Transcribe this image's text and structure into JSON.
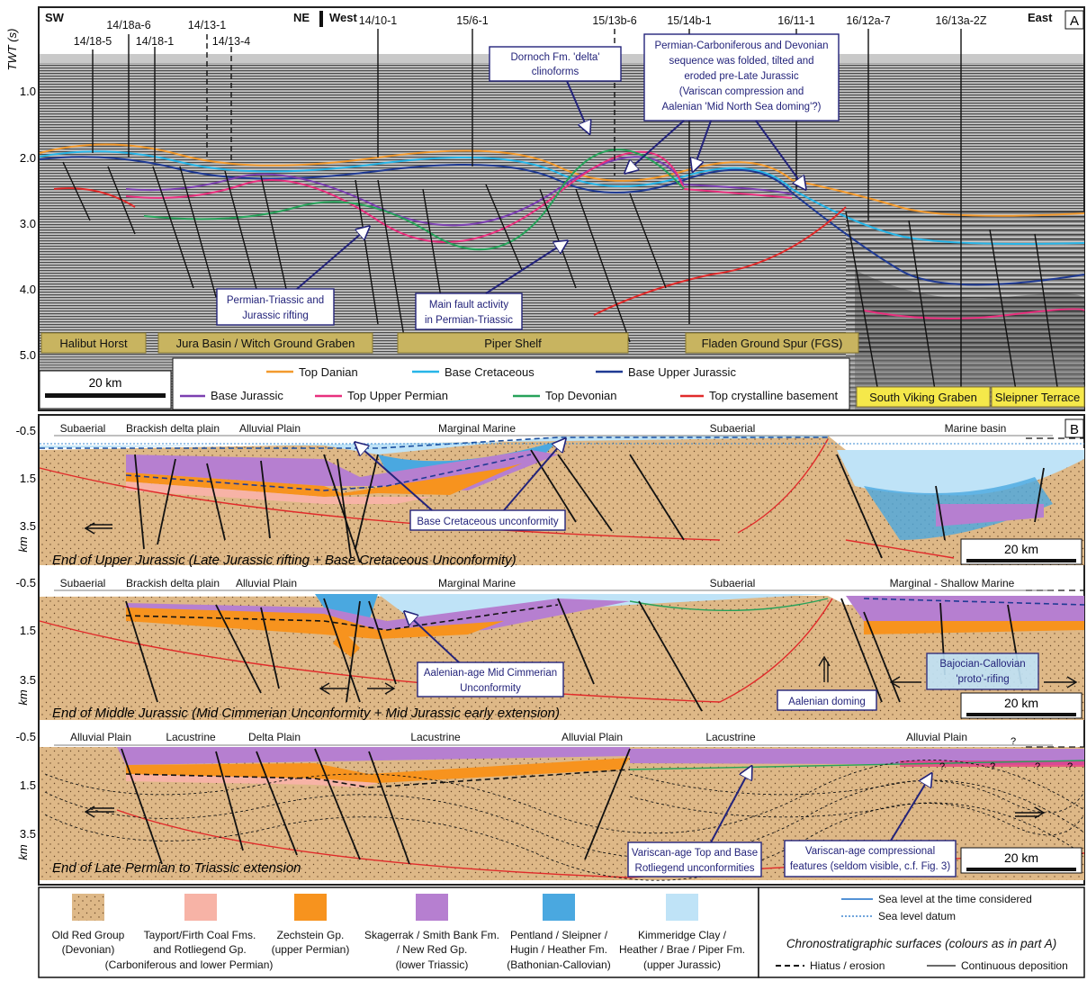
{
  "panel_a": {
    "label": "A",
    "axis_title": "TWT (s)",
    "y_ticks": [
      "1.0",
      "2.0",
      "3.0",
      "4.0",
      "5.0"
    ],
    "dir_sw": "SW",
    "dir_ne": "NE",
    "dir_west": "West",
    "dir_east": "East",
    "wells": [
      "14/18-5",
      "14/18a-6",
      "14/18-1",
      "14/13-1",
      "14/13-4",
      "14/10-1",
      "15/6-1",
      "15/13b-6",
      "15/14b-1",
      "16/11-1",
      "16/12a-7",
      "16/13a-2Z"
    ],
    "callouts": {
      "dornoch": [
        "Dornoch Fm. 'delta'",
        "clinoforms"
      ],
      "permo_carb": [
        "Permian-Carboniferous and Devonian",
        "sequence was folded, tilted and",
        "eroded pre-Late Jurassic",
        "(Variscan compression and",
        "Aalenian 'Mid North Sea doming'?)"
      ],
      "pt_rifting": [
        "Permian-Triassic and",
        "Jurassic rifting"
      ],
      "main_fault": [
        "Main fault activity",
        "in Permian-Triassic"
      ]
    },
    "structures": [
      "Halibut Horst",
      "Jura Basin / Witch Ground Graben",
      "Piper Shelf",
      "Fladen Ground Spur (FGS)",
      "South Viking Graben",
      "Sleipner Terrace"
    ],
    "scale": "20 km",
    "legend": [
      {
        "label": "Top Danian",
        "color": "#f39a2e"
      },
      {
        "label": "Base Cretaceous",
        "color": "#27b5e8"
      },
      {
        "label": "Base Upper Jurassic",
        "color": "#1f3a93"
      },
      {
        "label": "Base Jurassic",
        "color": "#7b3fb0"
      },
      {
        "label": "Top Upper Permian",
        "color": "#e8307e"
      },
      {
        "label": "Top Devonian",
        "color": "#27a25a"
      },
      {
        "label": "Top crystalline basement",
        "color": "#e02a2a"
      }
    ]
  },
  "panel_b": {
    "label": "B",
    "axis_unit": "km",
    "y_ticks": [
      "-0.5",
      "1.5",
      "3.5"
    ],
    "sections": [
      {
        "envs": [
          "Subaerial",
          "Brackish delta plain",
          "Alluvial Plain",
          "Marginal Marine",
          "Subaerial",
          "Marine basin"
        ],
        "title": "End of Upper Jurassic (Late Jurassic rifting + Base Cretaceous Unconformity)",
        "callouts": [
          [
            "Base Cretaceous unconformity"
          ]
        ],
        "scale": "20 km"
      },
      {
        "envs": [
          "Subaerial",
          "Brackish delta plain",
          "Alluvial Plain",
          "Marginal Marine",
          "Subaerial",
          "Marginal - Shallow Marine"
        ],
        "title": "End of Middle Jurassic (Mid Cimmerian Unconformity + Mid Jurassic early extension)",
        "callouts": [
          [
            "Aalenian-age Mid Cimmerian",
            "Unconformity"
          ],
          [
            "Aalenian doming"
          ],
          [
            "Bajocian-Callovian",
            "'proto'-rifing"
          ]
        ],
        "scale": "20 km"
      },
      {
        "envs": [
          "Alluvial Plain",
          "Lacustrine",
          "Delta Plain",
          "Lacustrine",
          "Alluvial Plain",
          "Lacustrine",
          "Alluvial Plain"
        ],
        "title": "End of Late Permian to Triassic extension",
        "callouts": [
          [
            "Variscan-age Top and Base",
            "Rotliegend unconformities"
          ],
          [
            "Variscan-age compressional",
            "features (seldom visible, c.f. Fig. 3)"
          ]
        ],
        "scale": "20 km",
        "question_marks": [
          "?",
          "?",
          "?",
          "?",
          "?"
        ]
      }
    ]
  },
  "legend_units": [
    {
      "lines": [
        "Old Red Group",
        "(Devonian)"
      ],
      "color": "#deb887"
    },
    {
      "lines": [
        "Tayport/Firth Coal Fms.",
        "and Rotliegend Gp.",
        "(Carboniferous and lower Permian)"
      ],
      "color": "#f7b3a6"
    },
    {
      "lines": [
        "Zechstein Gp.",
        "(upper Permian)"
      ],
      "color": "#f7931e"
    },
    {
      "lines": [
        "Skagerrak / Smith Bank Fm.",
        "/ New Red Gp.",
        "(lower Triassic)"
      ],
      "color": "#b67fd0"
    },
    {
      "lines": [
        "Pentland / Sleipner /",
        "Hugin / Heather Fm.",
        "(Bathonian-Callovian)"
      ],
      "color": "#4aa8e0"
    },
    {
      "lines": [
        "Kimmeridge Clay /",
        "Heather / Brae / Piper Fm.",
        "(upper Jurassic)"
      ],
      "color": "#bfe3f7"
    }
  ],
  "legend_right": {
    "sea_level": "Sea level at the time considered",
    "sea_datum": "Sea level datum",
    "chrono": "Chronostratigraphic surfaces (colours as in part A)",
    "hiatus": "Hiatus / erosion",
    "continuous": "Continuous deposition"
  }
}
